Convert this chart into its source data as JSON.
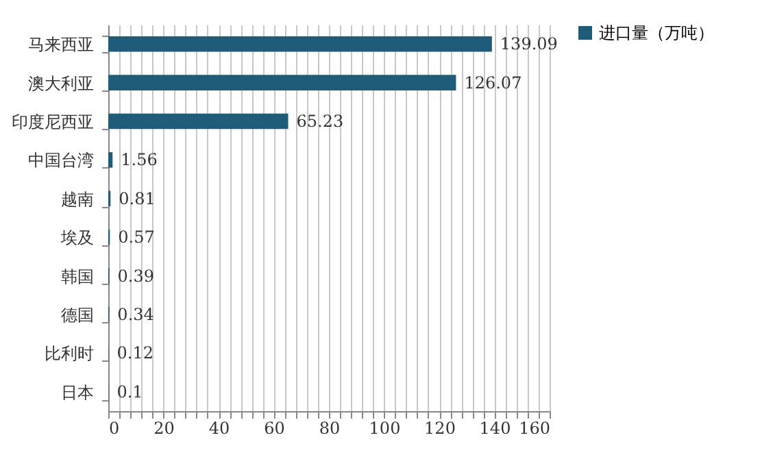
{
  "chart_data": {
    "type": "bar",
    "orientation": "horizontal",
    "categories": [
      "马来西亚",
      "澳大利亚",
      "印度尼西亚",
      "中国台湾",
      "越南",
      "埃及",
      "韩国",
      "德国",
      "比利时",
      "日本"
    ],
    "series": [
      {
        "name": "进口量（万吨）",
        "color": "#1f5c7a",
        "values": [
          139.09,
          126.07,
          65.23,
          1.56,
          0.81,
          0.57,
          0.39,
          0.34,
          0.12,
          0.1
        ]
      }
    ],
    "xlim": [
      0,
      160
    ],
    "xticks": [
      0,
      {
        "value": 4,
        "label": null
      },
      {
        "value": 8,
        "label": null
      },
      {
        "value": 12,
        "label": null
      },
      {
        "value": 16,
        "label": null
      },
      20,
      {
        "value": 24,
        "label": null
      },
      {
        "value": 28,
        "label": null
      },
      {
        "value": 32,
        "label": null
      },
      {
        "value": 36,
        "label": null
      },
      40,
      {
        "value": 44,
        "label": null
      },
      {
        "value": 48,
        "label": null
      },
      {
        "value": 52,
        "label": null
      },
      {
        "value": 56,
        "label": null
      },
      60,
      {
        "value": 64,
        "label": null
      },
      {
        "value": 68,
        "label": null
      },
      {
        "value": 72,
        "label": null
      },
      {
        "value": 76,
        "label": null
      },
      80,
      {
        "value": 84,
        "label": null
      },
      {
        "value": 88,
        "label": null
      },
      {
        "value": 92,
        "label": null
      },
      {
        "value": 96,
        "label": null
      },
      100,
      {
        "value": 104,
        "label": null
      },
      {
        "value": 108,
        "label": null
      },
      {
        "value": 112,
        "label": null
      },
      {
        "value": 116,
        "label": null
      },
      120,
      {
        "value": 124,
        "label": null
      },
      {
        "value": 128,
        "label": null
      },
      {
        "value": 132,
        "label": null
      },
      {
        "value": 136,
        "label": null
      },
      140,
      {
        "value": 144,
        "label": null
      },
      {
        "value": 148,
        "label": null
      },
      {
        "value": 152,
        "label": null
      },
      {
        "value": 156,
        "label": null
      },
      160
    ],
    "grid": true,
    "data_labels": true,
    "legend": "right"
  }
}
